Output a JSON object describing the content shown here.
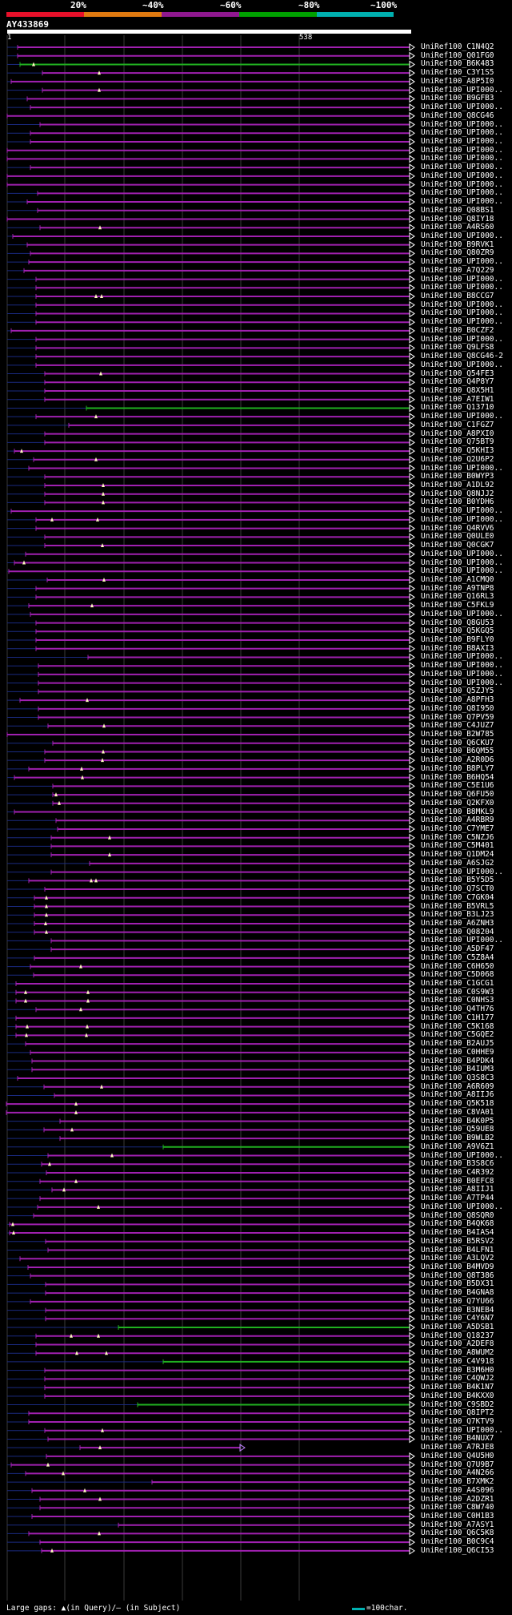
{
  "legend": {
    "labels": [
      "20%",
      "~40%",
      "~60%",
      "~80%",
      "~100%"
    ],
    "band_colors": [
      "#e8102a",
      "#e07a10",
      "#901890",
      "#00a000",
      "#00b0b0"
    ]
  },
  "query": {
    "title": "AY433869",
    "start": "1",
    "end": "538"
  },
  "hits": [
    {
      "name": "UniRef100_C1N4Q2",
      "s": 22,
      "c": "p",
      "m": []
    },
    {
      "name": "UniRef100_Q01FG0",
      "s": 22,
      "c": "p",
      "m": []
    },
    {
      "name": "UniRef100_B6K483",
      "s": 25,
      "c": "g",
      "m": [
        42
      ]
    },
    {
      "name": "UniRef100_C3Y1S5",
      "s": 53,
      "c": "p",
      "m": [
        124
      ]
    },
    {
      "name": "UniRef100_A8P5I0",
      "s": 14,
      "c": "p",
      "m": []
    },
    {
      "name": "UniRef100_UPI000..",
      "s": 53,
      "c": "p",
      "m": [
        124
      ]
    },
    {
      "name": "UniRef100_B9GFB3",
      "s": 34,
      "c": "p",
      "m": []
    },
    {
      "name": "UniRef100_UPI000..",
      "s": 38,
      "c": "p",
      "m": []
    },
    {
      "name": "UniRef100_Q8CG46",
      "s": 9,
      "c": "p",
      "m": []
    },
    {
      "name": "UniRef100_UPI000..",
      "s": 50,
      "c": "p",
      "m": []
    },
    {
      "name": "UniRef100_UPI000..",
      "s": 38,
      "c": "p",
      "m": []
    },
    {
      "name": "UniRef100_UPI000..",
      "s": 38,
      "c": "p",
      "m": []
    },
    {
      "name": "UniRef100_UPI000..",
      "s": 9,
      "c": "p",
      "m": []
    },
    {
      "name": "UniRef100_UPI000..",
      "s": 9,
      "c": "p",
      "m": []
    },
    {
      "name": "UniRef100_UPI000..",
      "s": 38,
      "c": "p",
      "m": []
    },
    {
      "name": "UniRef100_UPI000..",
      "s": 9,
      "c": "p",
      "m": []
    },
    {
      "name": "UniRef100_UPI000..",
      "s": 9,
      "c": "p",
      "m": []
    },
    {
      "name": "UniRef100_UPI000..",
      "s": 47,
      "c": "p",
      "m": []
    },
    {
      "name": "UniRef100_UPI000..",
      "s": 34,
      "c": "p",
      "m": []
    },
    {
      "name": "UniRef100_Q08BS1",
      "s": 47,
      "c": "p",
      "m": []
    },
    {
      "name": "UniRef100_Q8IY18",
      "s": 9,
      "c": "p",
      "m": []
    },
    {
      "name": "UniRef100_A4RS60",
      "s": 50,
      "c": "p",
      "m": [
        125
      ]
    },
    {
      "name": "UniRef100_UPI000..",
      "s": 16,
      "c": "p",
      "m": []
    },
    {
      "name": "UniRef100_B9RVK1",
      "s": 34,
      "c": "p",
      "m": []
    },
    {
      "name": "UniRef100_Q80ZR9",
      "s": 38,
      "c": "p",
      "m": []
    },
    {
      "name": "UniRef100_UPI000..",
      "s": 36,
      "c": "p",
      "m": []
    },
    {
      "name": "UniRef100_A7Q229",
      "s": 30,
      "c": "p",
      "m": []
    },
    {
      "name": "UniRef100_UPI000..",
      "s": 45,
      "c": "p",
      "m": []
    },
    {
      "name": "UniRef100_UPI000..",
      "s": 45,
      "c": "p",
      "m": []
    },
    {
      "name": "UniRef100_B8CCG7",
      "s": 45,
      "c": "p",
      "m": [
        120,
        127
      ]
    },
    {
      "name": "UniRef100_UPI000..",
      "s": 45,
      "c": "p",
      "m": []
    },
    {
      "name": "UniRef100_UPI000..",
      "s": 45,
      "c": "p",
      "m": []
    },
    {
      "name": "UniRef100_UPI000..",
      "s": 45,
      "c": "p",
      "m": []
    },
    {
      "name": "UniRef100_B0CZF2",
      "s": 14,
      "c": "p",
      "m": []
    },
    {
      "name": "UniRef100_UPI000..",
      "s": 45,
      "c": "p",
      "m": []
    },
    {
      "name": "UniRef100_Q9LFS8",
      "s": 45,
      "c": "p",
      "m": []
    },
    {
      "name": "UniRef100_Q8CG46-2",
      "s": 45,
      "c": "p",
      "m": []
    },
    {
      "name": "UniRef100_UPI000..",
      "s": 45,
      "c": "p",
      "m": []
    },
    {
      "name": "UniRef100_Q54FE3",
      "s": 56,
      "c": "p",
      "m": [
        126
      ]
    },
    {
      "name": "UniRef100_Q4P8Y7",
      "s": 56,
      "c": "p",
      "m": []
    },
    {
      "name": "UniRef100_Q8X5H1",
      "s": 56,
      "c": "p",
      "m": []
    },
    {
      "name": "UniRef100_A7EIW1",
      "s": 56,
      "c": "p",
      "m": []
    },
    {
      "name": "UniRef100_Q13710",
      "s": 108,
      "c": "g",
      "m": []
    },
    {
      "name": "UniRef100_UPI000..",
      "s": 45,
      "c": "p",
      "m": [
        120
      ]
    },
    {
      "name": "UniRef100_C1FGZ7",
      "s": 86,
      "c": "p",
      "m": []
    },
    {
      "name": "UniRef100_A8PXI0",
      "s": 56,
      "c": "p",
      "m": []
    },
    {
      "name": "UniRef100_Q75BT9",
      "s": 56,
      "c": "p",
      "m": []
    },
    {
      "name": "UniRef100_Q5KHI3",
      "s": 18,
      "c": "p",
      "m": [
        27
      ]
    },
    {
      "name": "UniRef100_Q2U6P2",
      "s": 42,
      "c": "p",
      "m": [
        120
      ]
    },
    {
      "name": "UniRef100_UPI000..",
      "s": 36,
      "c": "p",
      "m": []
    },
    {
      "name": "UniRef100_B0WYP3",
      "s": 56,
      "c": "p",
      "m": []
    },
    {
      "name": "UniRef100_A1DL92",
      "s": 56,
      "c": "p",
      "m": [
        129
      ]
    },
    {
      "name": "UniRef100_Q8NJJ2",
      "s": 56,
      "c": "p",
      "m": [
        129
      ]
    },
    {
      "name": "UniRef100_B0YDH6",
      "s": 56,
      "c": "p",
      "m": [
        129
      ]
    },
    {
      "name": "UniRef100_UPI000..",
      "s": 14,
      "c": "p",
      "m": []
    },
    {
      "name": "UniRef100_UPI000..",
      "s": 45,
      "c": "p",
      "m": [
        65,
        122
      ]
    },
    {
      "name": "UniRef100_Q4RVV6",
      "s": 45,
      "c": "p",
      "m": []
    },
    {
      "name": "UniRef100_Q0ULE0",
      "s": 56,
      "c": "p",
      "m": []
    },
    {
      "name": "UniRef100_Q0CGK7",
      "s": 56,
      "c": "p",
      "m": [
        128
      ]
    },
    {
      "name": "UniRef100_UPI000..",
      "s": 32,
      "c": "p",
      "m": []
    },
    {
      "name": "UniRef100_UPI000..",
      "s": 18,
      "c": "p",
      "m": [
        30
      ]
    },
    {
      "name": "UniRef100_UPI000..",
      "s": 11,
      "c": "p",
      "m": []
    },
    {
      "name": "UniRef100_A1CMQ0",
      "s": 59,
      "c": "p",
      "m": [
        130
      ]
    },
    {
      "name": "UniRef100_A9TNP8",
      "s": 45,
      "c": "p",
      "m": []
    },
    {
      "name": "UniRef100_Q16RL3",
      "s": 45,
      "c": "p",
      "m": []
    },
    {
      "name": "UniRef100_C5FKL9",
      "s": 36,
      "c": "p",
      "m": [
        115
      ]
    },
    {
      "name": "UniRef100_UPI000..",
      "s": 38,
      "c": "p",
      "m": []
    },
    {
      "name": "UniRef100_Q8GU53",
      "s": 45,
      "c": "p",
      "m": []
    },
    {
      "name": "UniRef100_Q5KGQ5",
      "s": 45,
      "c": "p",
      "m": []
    },
    {
      "name": "UniRef100_B9FLY0",
      "s": 45,
      "c": "p",
      "m": []
    },
    {
      "name": "UniRef100_B8AXI3",
      "s": 45,
      "c": "p",
      "m": []
    },
    {
      "name": "UniRef100_UPI000..",
      "s": 110,
      "c": "p",
      "m": []
    },
    {
      "name": "UniRef100_UPI000..",
      "s": 48,
      "c": "p",
      "m": []
    },
    {
      "name": "UniRef100_UPI000..",
      "s": 48,
      "c": "p",
      "m": []
    },
    {
      "name": "UniRef100_UPI000..",
      "s": 48,
      "c": "p",
      "m": []
    },
    {
      "name": "UniRef100_Q5ZJY5",
      "s": 48,
      "c": "p",
      "m": []
    },
    {
      "name": "UniRef100_A8PFH3",
      "s": 25,
      "c": "p",
      "m": [
        109
      ]
    },
    {
      "name": "UniRef100_Q8I950",
      "s": 48,
      "c": "p",
      "m": []
    },
    {
      "name": "UniRef100_Q7PV59",
      "s": 48,
      "c": "p",
      "m": []
    },
    {
      "name": "UniRef100_C4JUZ7",
      "s": 60,
      "c": "p",
      "m": [
        130
      ]
    },
    {
      "name": "UniRef100_B2W785",
      "s": 9,
      "c": "p",
      "m": []
    },
    {
      "name": "UniRef100_Q6CKU7",
      "s": 66,
      "c": "p",
      "m": []
    },
    {
      "name": "UniRef100_B6QM55",
      "s": 56,
      "c": "p",
      "m": [
        129
      ]
    },
    {
      "name": "UniRef100_A2R0D6",
      "s": 56,
      "c": "p",
      "m": [
        128
      ]
    },
    {
      "name": "UniRef100_B8PLY7",
      "s": 36,
      "c": "p",
      "m": [
        102
      ]
    },
    {
      "name": "UniRef100_B6HQ54",
      "s": 18,
      "c": "p",
      "m": [
        103
      ]
    },
    {
      "name": "UniRef100_C5E1U6",
      "s": 66,
      "c": "p",
      "m": []
    },
    {
      "name": "UniRef100_Q6FU50",
      "s": 66,
      "c": "p",
      "m": [
        70
      ]
    },
    {
      "name": "UniRef100_Q2KFX0",
      "s": 66,
      "c": "p",
      "m": [
        74
      ]
    },
    {
      "name": "UniRef100_B8MKL9",
      "s": 18,
      "c": "p",
      "m": []
    },
    {
      "name": "UniRef100_A4RBR9",
      "s": 70,
      "c": "p",
      "m": []
    },
    {
      "name": "UniRef100_C7YME7",
      "s": 72,
      "c": "p",
      "m": []
    },
    {
      "name": "UniRef100_C5NZJ6",
      "s": 64,
      "c": "p",
      "m": [
        137
      ]
    },
    {
      "name": "UniRef100_C5M401",
      "s": 64,
      "c": "p",
      "m": []
    },
    {
      "name": "UniRef100_Q1DM24",
      "s": 64,
      "c": "p",
      "m": [
        137
      ]
    },
    {
      "name": "UniRef100_A6SJG2",
      "s": 112,
      "c": "p",
      "m": []
    },
    {
      "name": "UniRef100_UPI000..",
      "s": 64,
      "c": "p",
      "m": []
    },
    {
      "name": "UniRef100_B5Y5D5",
      "s": 36,
      "c": "p",
      "m": [
        114,
        120
      ]
    },
    {
      "name": "UniRef100_Q7SCT0",
      "s": 56,
      "c": "p",
      "m": []
    },
    {
      "name": "UniRef100_C7GK04",
      "s": 43,
      "c": "p",
      "m": [
        58
      ]
    },
    {
      "name": "UniRef100_B5VRL5",
      "s": 43,
      "c": "p",
      "m": [
        58
      ]
    },
    {
      "name": "UniRef100_B3LJ23",
      "s": 43,
      "c": "p",
      "m": [
        58
      ]
    },
    {
      "name": "UniRef100_A6ZNH3",
      "s": 43,
      "c": "p",
      "m": [
        57
      ]
    },
    {
      "name": "UniRef100_Q08204",
      "s": 43,
      "c": "p",
      "m": [
        58
      ]
    },
    {
      "name": "UniRef100_UPI000..",
      "s": 64,
      "c": "p",
      "m": []
    },
    {
      "name": "UniRef100_A5DF47",
      "s": 64,
      "c": "p",
      "m": []
    },
    {
      "name": "UniRef100_C5Z8A4",
      "s": 43,
      "c": "p",
      "m": []
    },
    {
      "name": "UniRef100_C6H650",
      "s": 38,
      "c": "p",
      "m": [
        101
      ]
    },
    {
      "name": "UniRef100_C5D068",
      "s": 42,
      "c": "p",
      "m": []
    },
    {
      "name": "UniRef100_C1GCG1",
      "s": 20,
      "c": "p",
      "m": []
    },
    {
      "name": "UniRef100_C0S9W3",
      "s": 20,
      "c": "p",
      "m": [
        32,
        110
      ]
    },
    {
      "name": "UniRef100_C0NHS3",
      "s": 20,
      "c": "p",
      "m": [
        32,
        110
      ]
    },
    {
      "name": "UniRef100_Q4TH76",
      "s": 45,
      "c": "p",
      "m": [
        101
      ]
    },
    {
      "name": "UniRef100_C1H177",
      "s": 20,
      "c": "p",
      "m": []
    },
    {
      "name": "UniRef100_C5K168",
      "s": 20,
      "c": "p",
      "m": [
        34,
        109
      ]
    },
    {
      "name": "UniRef100_C5GQE2",
      "s": 20,
      "c": "p",
      "m": [
        33,
        108
      ]
    },
    {
      "name": "UniRef100_B2AUJ5",
      "s": 32,
      "c": "p",
      "m": []
    },
    {
      "name": "UniRef100_C0HHE9",
      "s": 38,
      "c": "p",
      "m": []
    },
    {
      "name": "UniRef100_B4PDK4",
      "s": 40,
      "c": "p",
      "m": []
    },
    {
      "name": "UniRef100_B4IUM3",
      "s": 40,
      "c": "p",
      "m": []
    },
    {
      "name": "UniRef100_Q3S8C3",
      "s": 22,
      "c": "p",
      "m": []
    },
    {
      "name": "UniRef100_A6R609",
      "s": 55,
      "c": "p",
      "m": [
        127
      ]
    },
    {
      "name": "UniRef100_A8IIJ6",
      "s": 68,
      "c": "p",
      "m": []
    },
    {
      "name": "UniRef100_Q5K518",
      "s": 8,
      "c": "p",
      "m": [
        95
      ]
    },
    {
      "name": "UniRef100_C8VA01",
      "s": 8,
      "c": "p",
      "m": [
        95
      ]
    },
    {
      "name": "UniRef100_B4K0P5",
      "s": 75,
      "c": "p",
      "m": []
    },
    {
      "name": "UniRef100_Q59UE8",
      "s": 55,
      "c": "p",
      "m": [
        90
      ]
    },
    {
      "name": "UniRef100_B9WLB2",
      "s": 75,
      "c": "p",
      "m": []
    },
    {
      "name": "UniRef100_A9V6Z1",
      "s": 204,
      "c": "g",
      "m": []
    },
    {
      "name": "UniRef100_UPI000..",
      "s": 60,
      "c": "p",
      "m": [
        140
      ]
    },
    {
      "name": "UniRef100_B3S8C6",
      "s": 52,
      "c": "p",
      "m": [
        62
      ]
    },
    {
      "name": "UniRef100_C4R392",
      "s": 58,
      "c": "p",
      "m": []
    },
    {
      "name": "UniRef100_B0EFC8",
      "s": 50,
      "c": "p",
      "m": [
        95
      ]
    },
    {
      "name": "UniRef100_A8IIJ1",
      "s": 65,
      "c": "p",
      "m": [
        80
      ]
    },
    {
      "name": "UniRef100_A7TP44",
      "s": 50,
      "c": "p",
      "m": []
    },
    {
      "name": "UniRef100_UPI000..",
      "s": 47,
      "c": "p",
      "m": [
        123
      ]
    },
    {
      "name": "UniRef100_Q8SQR0",
      "s": 42,
      "c": "p",
      "m": []
    },
    {
      "name": "UniRef100_B4QK68",
      "s": 12,
      "c": "p",
      "m": [
        16
      ]
    },
    {
      "name": "UniRef100_B4IAS4",
      "s": 12,
      "c": "p",
      "m": [
        17
      ]
    },
    {
      "name": "UniRef100_B5RSV2",
      "s": 57,
      "c": "p",
      "m": []
    },
    {
      "name": "UniRef100_B4LFN1",
      "s": 60,
      "c": "p",
      "m": []
    },
    {
      "name": "UniRef100_A3LQV2",
      "s": 25,
      "c": "p",
      "m": []
    },
    {
      "name": "UniRef100_B4MVD9",
      "s": 35,
      "c": "p",
      "m": []
    },
    {
      "name": "UniRef100_Q8T386",
      "s": 38,
      "c": "p",
      "m": []
    },
    {
      "name": "UniRef100_B5DX31",
      "s": 57,
      "c": "p",
      "m": []
    },
    {
      "name": "UniRef100_B4GNA8",
      "s": 57,
      "c": "p",
      "m": []
    },
    {
      "name": "UniRef100_Q7YU66",
      "s": 38,
      "c": "p",
      "m": []
    },
    {
      "name": "UniRef100_B3NEB4",
      "s": 57,
      "c": "p",
      "m": []
    },
    {
      "name": "UniRef100_C4Y6N7",
      "s": 57,
      "c": "p",
      "m": []
    },
    {
      "name": "UniRef100_A5DSB1",
      "s": 148,
      "c": "g",
      "m": []
    },
    {
      "name": "UniRef100_Q18237",
      "s": 45,
      "c": "p",
      "m": [
        89,
        123
      ]
    },
    {
      "name": "UniRef100_A2DEF8",
      "s": 45,
      "c": "p",
      "m": []
    },
    {
      "name": "UniRef100_A8WUM2",
      "s": 45,
      "c": "p",
      "m": [
        96,
        133
      ]
    },
    {
      "name": "UniRef100_C4V918",
      "s": 204,
      "c": "g",
      "m": []
    },
    {
      "name": "UniRef100_B3M6H0",
      "s": 56,
      "c": "p",
      "m": []
    },
    {
      "name": "UniRef100_C4QWJ2",
      "s": 56,
      "c": "p",
      "m": []
    },
    {
      "name": "UniRef100_B4K1N7",
      "s": 56,
      "c": "p",
      "m": []
    },
    {
      "name": "UniRef100_B4KXX0",
      "s": 56,
      "c": "p",
      "m": []
    },
    {
      "name": "UniRef100_C9SBD2",
      "s": 172,
      "c": "g",
      "m": []
    },
    {
      "name": "UniRef100_Q8IPT2",
      "s": 36,
      "c": "p",
      "m": []
    },
    {
      "name": "UniRef100_Q7KTV9",
      "s": 36,
      "c": "p",
      "m": []
    },
    {
      "name": "UniRef100_UPI000..",
      "s": 56,
      "c": "p",
      "m": [
        128
      ]
    },
    {
      "name": "UniRef100_B4NUX7",
      "s": 60,
      "c": "p",
      "m": []
    },
    {
      "name": "UniRef100_A7RJE8",
      "s": 100,
      "c": "p",
      "m": [
        125
      ],
      "e": 300
    },
    {
      "name": "UniRef100_Q4U5H0",
      "s": 58,
      "c": "p",
      "m": []
    },
    {
      "name": "UniRef100_Q7U9B7",
      "s": 14,
      "c": "p",
      "m": [
        60
      ]
    },
    {
      "name": "UniRef100_A4N266",
      "s": 32,
      "c": "p",
      "m": [
        79
      ]
    },
    {
      "name": "UniRef100_B7XMK2",
      "s": 190,
      "c": "p",
      "m": []
    },
    {
      "name": "UniRef100_A4S096",
      "s": 40,
      "c": "p",
      "m": [
        106
      ]
    },
    {
      "name": "UniRef100_A2DZR1",
      "s": 50,
      "c": "p",
      "m": [
        125
      ]
    },
    {
      "name": "UniRef100_C8W740",
      "s": 50,
      "c": "p",
      "m": []
    },
    {
      "name": "UniRef100_C0H1B3",
      "s": 40,
      "c": "p",
      "m": []
    },
    {
      "name": "UniRef100_A7ASY1",
      "s": 148,
      "c": "p",
      "m": []
    },
    {
      "name": "UniRef100_Q6C5K8",
      "s": 36,
      "c": "p",
      "m": [
        124
      ]
    },
    {
      "name": "UniRef100_B0C9C4",
      "s": 50,
      "c": "p",
      "m": []
    },
    {
      "name": "UniRef100_Q6CI53",
      "s": 52,
      "c": "p",
      "m": [
        65
      ]
    }
  ],
  "footer": {
    "gaps_text": "Large gaps: ▲(in Query)/– (in Subject)",
    "scale_text": "=100char."
  }
}
